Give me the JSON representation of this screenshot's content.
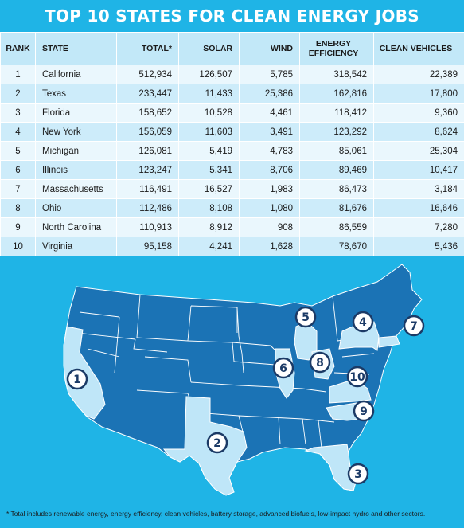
{
  "title": "TOP 10 STATES FOR CLEAN ENERGY JOBS",
  "table": {
    "headers": {
      "rank": "RANK",
      "state": "STATE",
      "total": "TOTAL*",
      "solar": "SOLAR",
      "wind": "WIND",
      "efficiency_line1": "ENERGY",
      "efficiency_line2": "EFFICIENCY",
      "vehicles": "CLEAN VEHICLES"
    },
    "rows": [
      {
        "rank": "1",
        "state": "California",
        "total": "512,934",
        "solar": "126,507",
        "wind": "5,785",
        "efficiency": "318,542",
        "vehicles": "22,389"
      },
      {
        "rank": "2",
        "state": "Texas",
        "total": "233,447",
        "solar": "11,433",
        "wind": "25,386",
        "efficiency": "162,816",
        "vehicles": "17,800"
      },
      {
        "rank": "3",
        "state": "Florida",
        "total": "158,652",
        "solar": "10,528",
        "wind": "4,461",
        "efficiency": "118,412",
        "vehicles": "9,360"
      },
      {
        "rank": "4",
        "state": "New York",
        "total": "156,059",
        "solar": "11,603",
        "wind": "3,491",
        "efficiency": "123,292",
        "vehicles": "8,624"
      },
      {
        "rank": "5",
        "state": "Michigan",
        "total": "126,081",
        "solar": "5,419",
        "wind": "4,783",
        "efficiency": "85,061",
        "vehicles": "25,304"
      },
      {
        "rank": "6",
        "state": "Illinois",
        "total": "123,247",
        "solar": "5,341",
        "wind": "8,706",
        "efficiency": "89,469",
        "vehicles": "10,417"
      },
      {
        "rank": "7",
        "state": "Massachusetts",
        "total": "116,491",
        "solar": "16,527",
        "wind": "1,983",
        "efficiency": "86,473",
        "vehicles": "3,184"
      },
      {
        "rank": "8",
        "state": "Ohio",
        "total": "112,486",
        "solar": "8,108",
        "wind": "1,080",
        "efficiency": "81,676",
        "vehicles": "16,646"
      },
      {
        "rank": "9",
        "state": "North Carolina",
        "total": "110,913",
        "solar": "8,912",
        "wind": "908",
        "efficiency": "86,559",
        "vehicles": "7,280"
      },
      {
        "rank": "10",
        "state": "Virginia",
        "total": "95,158",
        "solar": "4,241",
        "wind": "1,628",
        "efficiency": "78,670",
        "vehicles": "5,436"
      }
    ]
  },
  "map": {
    "colors": {
      "base": "#1b73b5",
      "highlight": "#bfe6f8",
      "border": "#ffffff",
      "badge_stroke": "#1b3a66"
    },
    "badges": [
      "1",
      "2",
      "3",
      "4",
      "5",
      "6",
      "7",
      "8",
      "9",
      "10"
    ]
  },
  "footnote": "* Total includes renewable energy, energy efficiency, clean vehicles, battery storage, advanced biofuels, low-impact hydro and other sectors."
}
